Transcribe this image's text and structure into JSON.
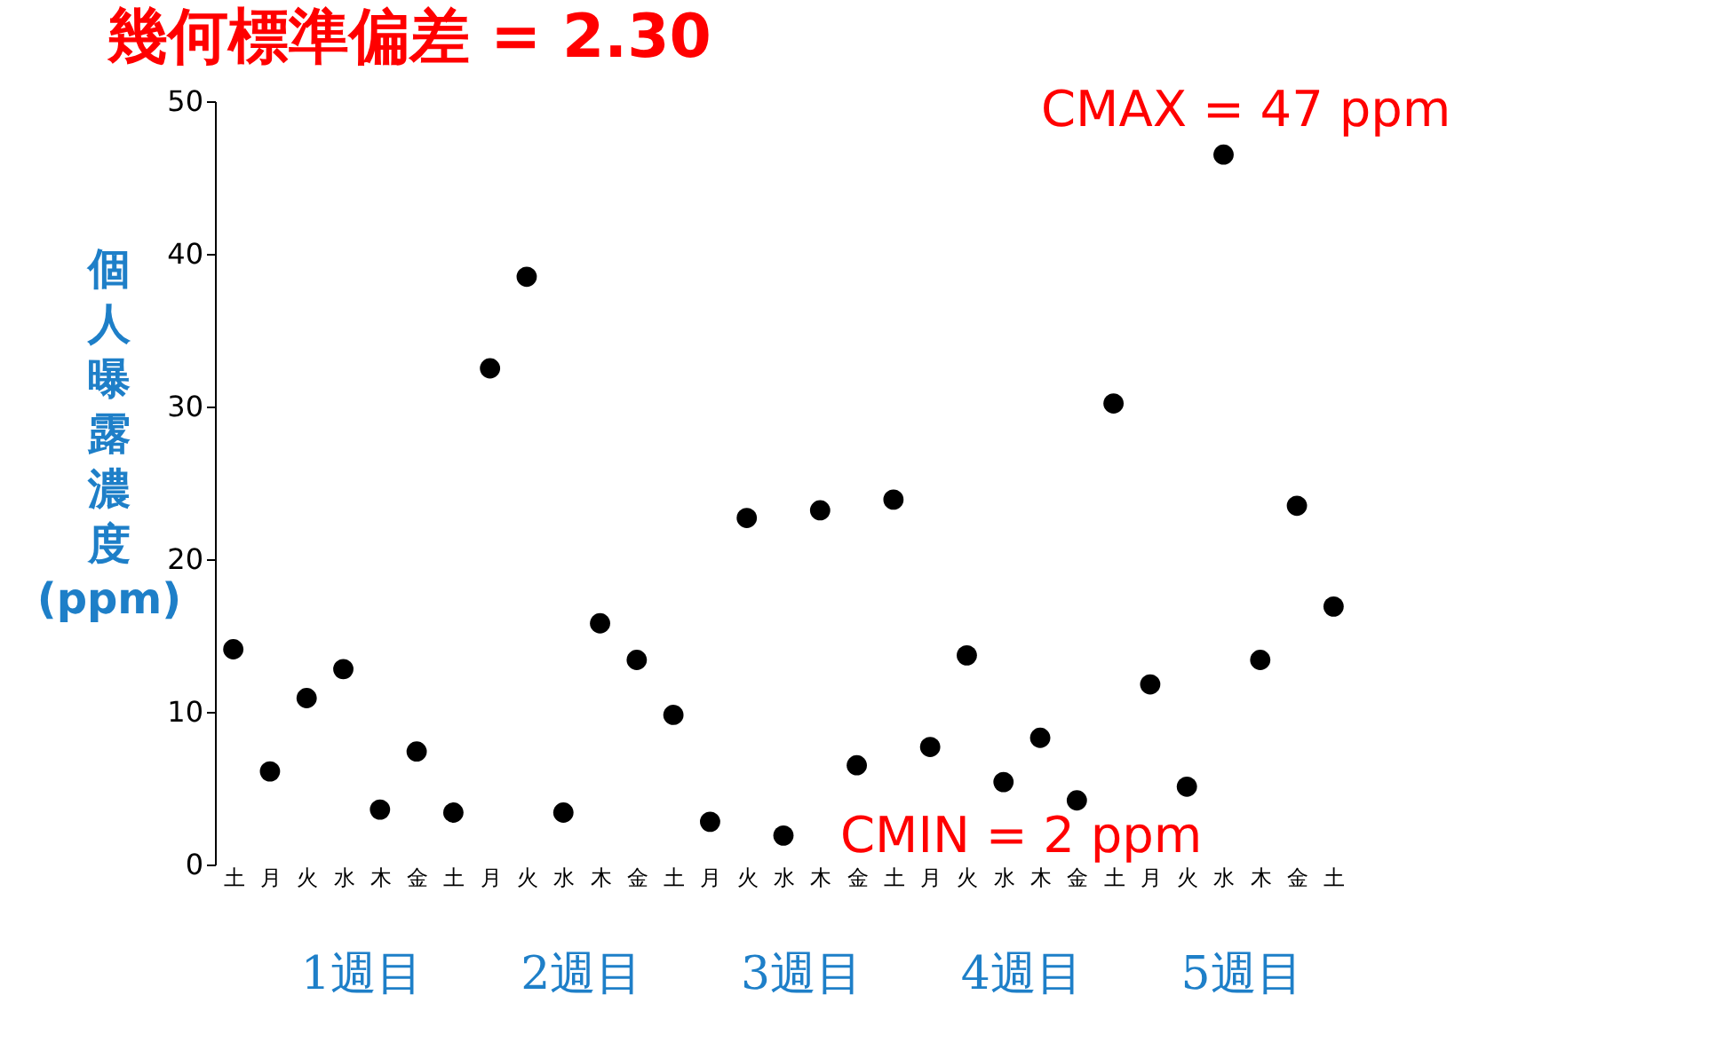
{
  "chart_data": {
    "type": "scatter",
    "title": "幾何標準偏差 = 2.30",
    "ylabel": "個人曝露濃度 (ppm)",
    "categories": [
      "土",
      "月",
      "火",
      "水",
      "木",
      "金",
      "土",
      "月",
      "火",
      "水",
      "木",
      "金",
      "土",
      "月",
      "火",
      "水",
      "木",
      "金",
      "土",
      "月",
      "火",
      "水",
      "木",
      "金",
      "土",
      "月",
      "火",
      "水",
      "木",
      "金",
      "土"
    ],
    "series": [
      {
        "color": "#000000",
        "values": [
          14.1,
          6.1,
          10.9,
          12.8,
          3.6,
          7.4,
          3.4,
          32.5,
          38.5,
          3.4,
          15.8,
          13.4,
          9.8,
          2.8,
          22.7,
          1.9,
          23.2,
          6.5,
          23.9,
          7.7,
          13.7,
          5.4,
          8.3,
          4.2,
          30.2,
          11.8,
          5.1,
          46.5,
          13.4,
          23.5,
          16.9
        ]
      }
    ],
    "ylim": [
      0,
      50
    ],
    "yticks": [
      0,
      10,
      20,
      30,
      40,
      50
    ],
    "grid": false,
    "legend": false,
    "marker": "circle",
    "annotations": [
      "CMAX = 47 ppm",
      "CMIN = 2 ppm",
      "1週目",
      "2週目",
      "3週目",
      "4週目",
      "5週目"
    ]
  }
}
